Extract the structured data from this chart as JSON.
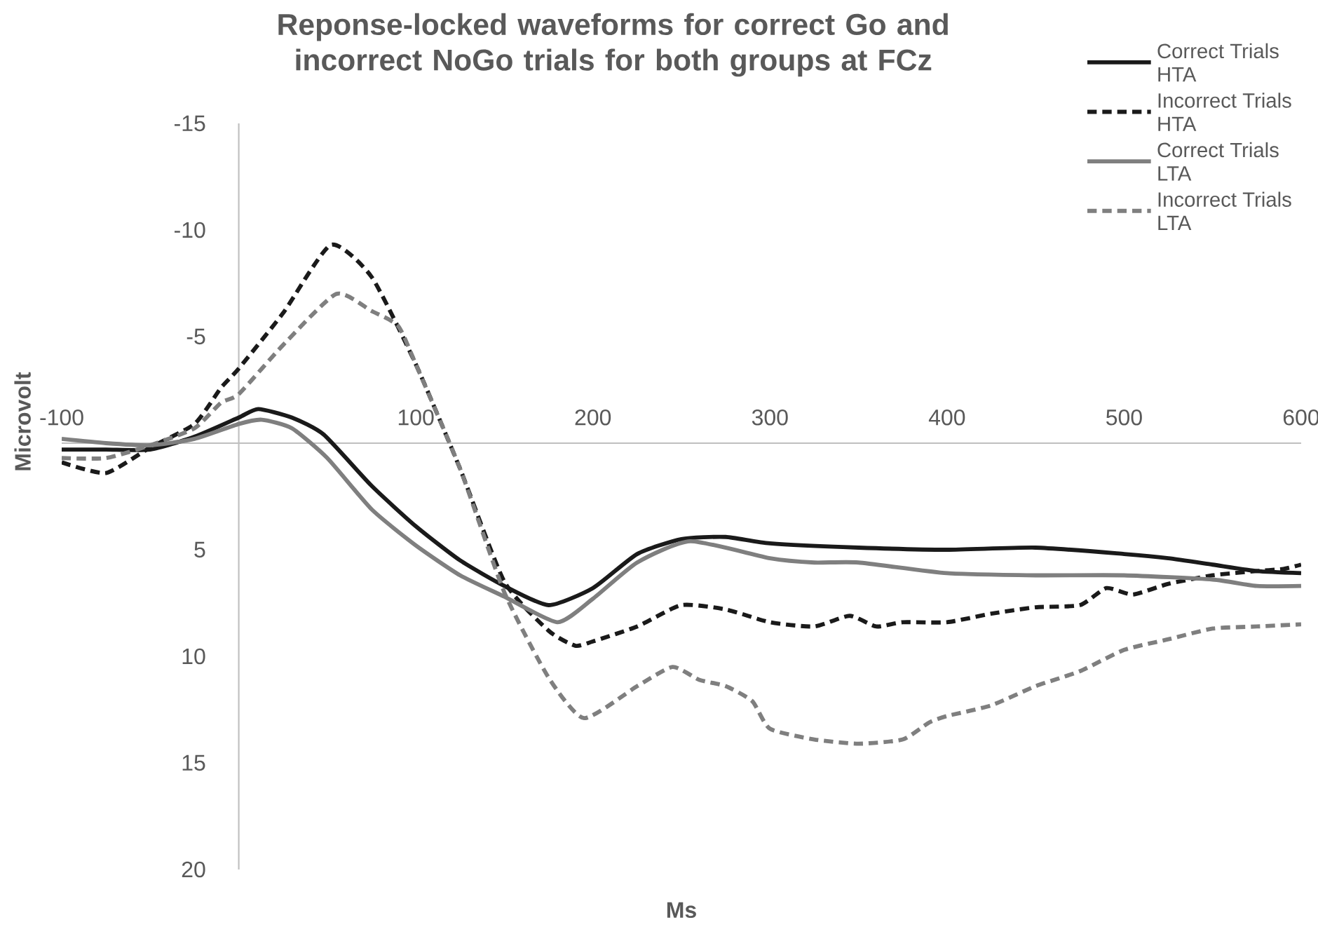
{
  "chart_data": {
    "type": "line",
    "title": "Reponse-locked waveforms for correct Go and incorrect NoGo trials for both groups at FCz",
    "xlabel": "Ms",
    "ylabel": "Microvolt",
    "xlim": [
      -100,
      600
    ],
    "xticks": [
      -100,
      100,
      200,
      300,
      400,
      500,
      600
    ],
    "ylim": [
      20,
      -15
    ],
    "yticks": [
      -15,
      -10,
      -5,
      5,
      10,
      15,
      20
    ],
    "grid": false,
    "legend": "top right",
    "marker": "none",
    "series": [
      {
        "name": "Correct Trials HTA",
        "color": "#1a1a1a",
        "line_style": "solid",
        "x": [
          -100,
          -75,
          -50,
          -25,
          0,
          11,
          30,
          48,
          75,
          100,
          125,
          150,
          175,
          200,
          225,
          250,
          275,
          300,
          350,
          400,
          450,
          500,
          525,
          550,
          575,
          600
        ],
        "values": [
          0.3,
          0.3,
          0.3,
          -0.3,
          -1.2,
          -1.6,
          -1.2,
          -0.4,
          2.0,
          3.9,
          5.5,
          6.7,
          7.6,
          6.8,
          5.2,
          4.5,
          4.4,
          4.7,
          4.9,
          5.0,
          4.9,
          5.2,
          5.4,
          5.7,
          6.0,
          6.1
        ]
      },
      {
        "name": "Incorrect Trials HTA",
        "color": "#1a1a1a",
        "line_style": "dashed",
        "x": [
          -100,
          -75,
          -50,
          -25,
          -10,
          0,
          25,
          52,
          75,
          100,
          125,
          150,
          175,
          190,
          200,
          225,
          250,
          275,
          300,
          325,
          345,
          360,
          375,
          400,
          425,
          450,
          475,
          490,
          505,
          525,
          550,
          575,
          590,
          600
        ],
        "values": [
          0.9,
          1.4,
          0.2,
          -0.9,
          -2.6,
          -3.5,
          -6.1,
          -9.3,
          -7.8,
          -3.7,
          1.2,
          6.5,
          8.8,
          9.5,
          9.3,
          8.6,
          7.6,
          7.8,
          8.4,
          8.6,
          8.1,
          8.6,
          8.4,
          8.4,
          8.0,
          7.7,
          7.6,
          6.8,
          7.1,
          6.6,
          6.2,
          6.0,
          5.9,
          5.7
        ]
      },
      {
        "name": "Correct Trials LTA",
        "color": "#7f7f7f",
        "line_style": "solid",
        "x": [
          -100,
          -75,
          -50,
          -25,
          0,
          13,
          30,
          50,
          75,
          100,
          125,
          150,
          180,
          200,
          225,
          255,
          300,
          325,
          350,
          400,
          450,
          500,
          550,
          575,
          600
        ],
        "values": [
          -0.2,
          0.0,
          0.1,
          -0.2,
          -0.9,
          -1.1,
          -0.7,
          0.7,
          3.1,
          4.8,
          6.2,
          7.2,
          8.4,
          7.3,
          5.6,
          4.6,
          5.4,
          5.6,
          5.6,
          6.1,
          6.2,
          6.2,
          6.4,
          6.7,
          6.7
        ]
      },
      {
        "name": "Incorrect Trials LTA",
        "color": "#7f7f7f",
        "line_style": "dashed",
        "x": [
          -100,
          -75,
          -50,
          -25,
          -10,
          0,
          25,
          55,
          75,
          90,
          100,
          125,
          150,
          175,
          195,
          225,
          245,
          260,
          275,
          290,
          300,
          325,
          350,
          375,
          390,
          400,
          425,
          450,
          475,
          500,
          525,
          550,
          575,
          600
        ],
        "values": [
          0.7,
          0.7,
          0.1,
          -0.7,
          -1.9,
          -2.3,
          -4.6,
          -7.0,
          -6.2,
          -5.5,
          -3.7,
          1.2,
          7.0,
          11.0,
          12.9,
          11.4,
          10.5,
          11.1,
          11.4,
          12.1,
          13.4,
          13.9,
          14.1,
          13.9,
          13.1,
          12.8,
          12.3,
          11.4,
          10.7,
          9.7,
          9.2,
          8.7,
          8.6,
          8.5
        ]
      }
    ]
  }
}
